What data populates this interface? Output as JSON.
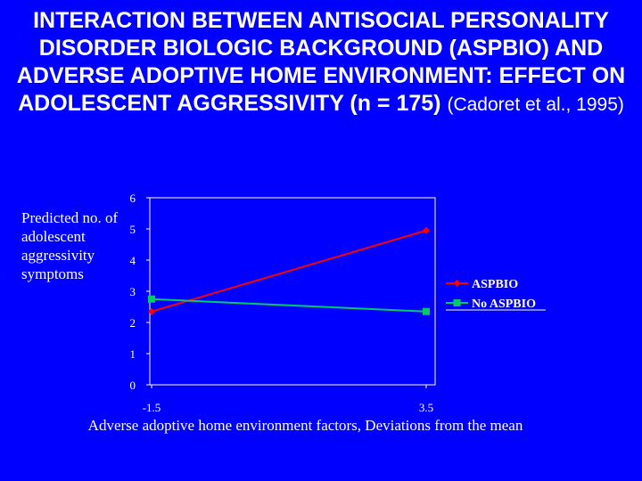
{
  "chart_data": {
    "type": "line",
    "title_main": "INTERACTION BETWEEN ANTISOCIAL PERSONALITY DISORDER BIOLOGIC BACKGROUND (ASPBIO) AND ADVERSE ADOPTIVE HOME ENVIRONMENT: EFFECT ON ADOLESCENT AGGRESSIVITY (n = 175)",
    "title_cite": "(Cadoret et al., 1995)",
    "ylabel": "Predicted no. of adolescent aggressivity symptoms",
    "xlabel": "Adverse adoptive home environment factors, Deviations from the mean",
    "x": [
      -1.5,
      3.5
    ],
    "x_tick_labels": [
      "-1.5",
      "3.5"
    ],
    "ylim": [
      0,
      6
    ],
    "y_ticks": [
      0,
      1,
      2,
      3,
      4,
      5,
      6
    ],
    "y_tick_labels": [
      "0",
      "1",
      "2",
      "3",
      "4",
      "5",
      "6"
    ],
    "grid": false,
    "legend_position": "right",
    "series": [
      {
        "name": "ASPBIO",
        "values": [
          2.35,
          4.95
        ],
        "color": "#ff0000",
        "marker": "diamond"
      },
      {
        "name": "No ASPBIO",
        "values": [
          2.75,
          2.35
        ],
        "color": "#00cc66",
        "marker": "square"
      }
    ]
  },
  "colors": {
    "background": "#0000ff",
    "text": "#ffffff",
    "axis": "#ffffff"
  }
}
